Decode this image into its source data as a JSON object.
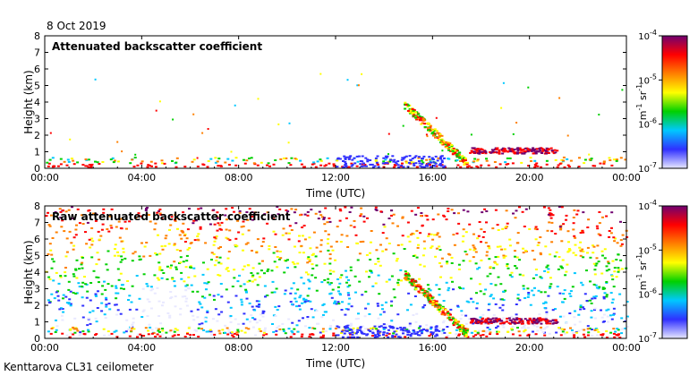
{
  "date": "8 Oct 2019",
  "footer": "Kenttarova CL31 ceilometer",
  "chart_data": [
    {
      "type": "heatmap",
      "title": "Attenuated backscatter coefficient",
      "xlabel": "Time (UTC)",
      "ylabel": "Height (km)",
      "x_ticks": [
        "00:00",
        "04:00",
        "08:00",
        "12:00",
        "16:00",
        "20:00",
        "00:00"
      ],
      "x_range_hours": [
        0,
        24
      ],
      "ylim": [
        0,
        8
      ],
      "y_ticks": [
        0,
        1,
        2,
        3,
        4,
        5,
        6,
        7,
        8
      ],
      "colorbar": {
        "scale": "log",
        "min_exp": -7,
        "max_exp": -4,
        "tick_exps": [
          -7,
          -6,
          -5,
          -4
        ],
        "tick_labels": [
          "10",
          "10",
          "10",
          "10"
        ],
        "tick_powers": [
          "-7",
          "-6",
          "-5",
          "-4"
        ],
        "unit_parts": [
          "m",
          "-1",
          " sr",
          "-1"
        ],
        "colors": [
          "#e8e8ff",
          "#3030ff",
          "#00c8ff",
          "#00d000",
          "#ffff00",
          "#ff8000",
          "#ff0000",
          "#700070"
        ]
      }
    },
    {
      "type": "heatmap",
      "title": "Raw attenuated backscatter coefficient",
      "xlabel": "Time (UTC)",
      "ylabel": "Height (km)",
      "x_ticks": [
        "00:00",
        "04:00",
        "08:00",
        "12:00",
        "16:00",
        "20:00",
        "00:00"
      ],
      "x_range_hours": [
        0,
        24
      ],
      "ylim": [
        0,
        8
      ],
      "y_ticks": [
        0,
        1,
        2,
        3,
        4,
        5,
        6,
        7,
        8
      ],
      "colorbar": {
        "scale": "log",
        "min_exp": -7,
        "max_exp": -4,
        "tick_exps": [
          -7,
          -6,
          -5,
          -4
        ],
        "tick_labels": [
          "10",
          "10",
          "10",
          "10"
        ],
        "tick_powers": [
          "-7",
          "-6",
          "-5",
          "-4"
        ],
        "unit_parts": [
          "m",
          "-1",
          " sr",
          "-1"
        ],
        "colors": [
          "#e8e8ff",
          "#3030ff",
          "#00c8ff",
          "#00d000",
          "#ffff00",
          "#ff8000",
          "#ff0000",
          "#700070"
        ]
      }
    }
  ]
}
